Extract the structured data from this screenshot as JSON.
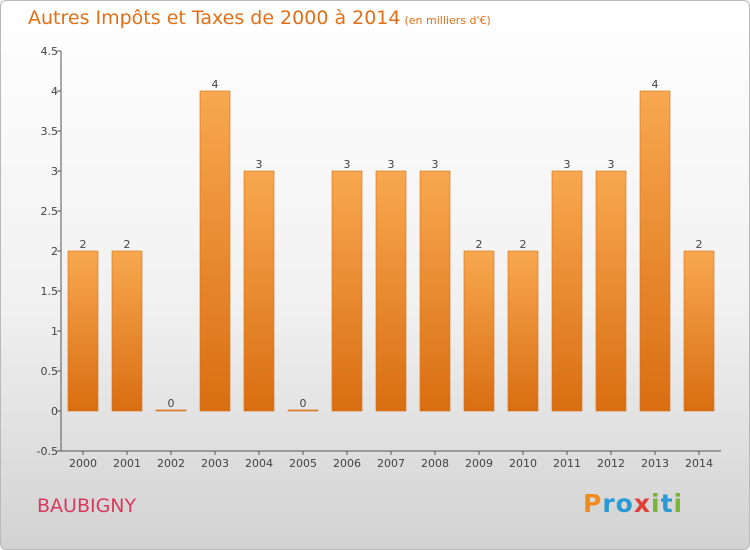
{
  "header": {
    "title": "Autres Impôts et Taxes de 2000 à 2014",
    "subtitle": "(en milliers d'€)"
  },
  "footer": {
    "commune": "BAUBIGNY",
    "logo": {
      "letters": [
        "P",
        "r",
        "o",
        "x",
        "i",
        "t",
        "i"
      ]
    }
  },
  "colors": {
    "bar_light": "#f8a850",
    "bar_dark": "#d96e12",
    "title": "#e07018",
    "commune": "#d83a5e",
    "logo": [
      "#f08c1e",
      "#2a9ad6",
      "#2a9ad6",
      "#e0403a",
      "#7ab43c",
      "#2a9ad6",
      "#7ab43c"
    ]
  },
  "chart_data": {
    "type": "bar",
    "title": "Autres Impôts et Taxes de 2000 à 2014",
    "subtitle": "(en milliers d'€)",
    "categories": [
      "2000",
      "2001",
      "2002",
      "2003",
      "2004",
      "2005",
      "2006",
      "2007",
      "2008",
      "2009",
      "2010",
      "2011",
      "2012",
      "2013",
      "2014"
    ],
    "values": [
      2,
      2,
      0,
      4,
      3,
      0,
      3,
      3,
      3,
      2,
      2,
      3,
      3,
      4,
      2
    ],
    "value_labels": [
      "2",
      "2",
      "0",
      "4",
      "3",
      "0",
      "3",
      "3",
      "3",
      "2",
      "2",
      "3",
      "3",
      "4",
      "2"
    ],
    "yticks": [
      -0.5,
      0,
      0.5,
      1,
      1.5,
      2,
      2.5,
      3,
      3.5,
      4,
      4.5
    ],
    "ytick_labels": [
      "-0.5",
      "0",
      "0.5",
      "1",
      "1.5",
      "2",
      "2.5",
      "3",
      "3.5",
      "4",
      "4.5"
    ],
    "ylim": [
      -0.5,
      4.5
    ],
    "grid": false,
    "legend": "none"
  }
}
